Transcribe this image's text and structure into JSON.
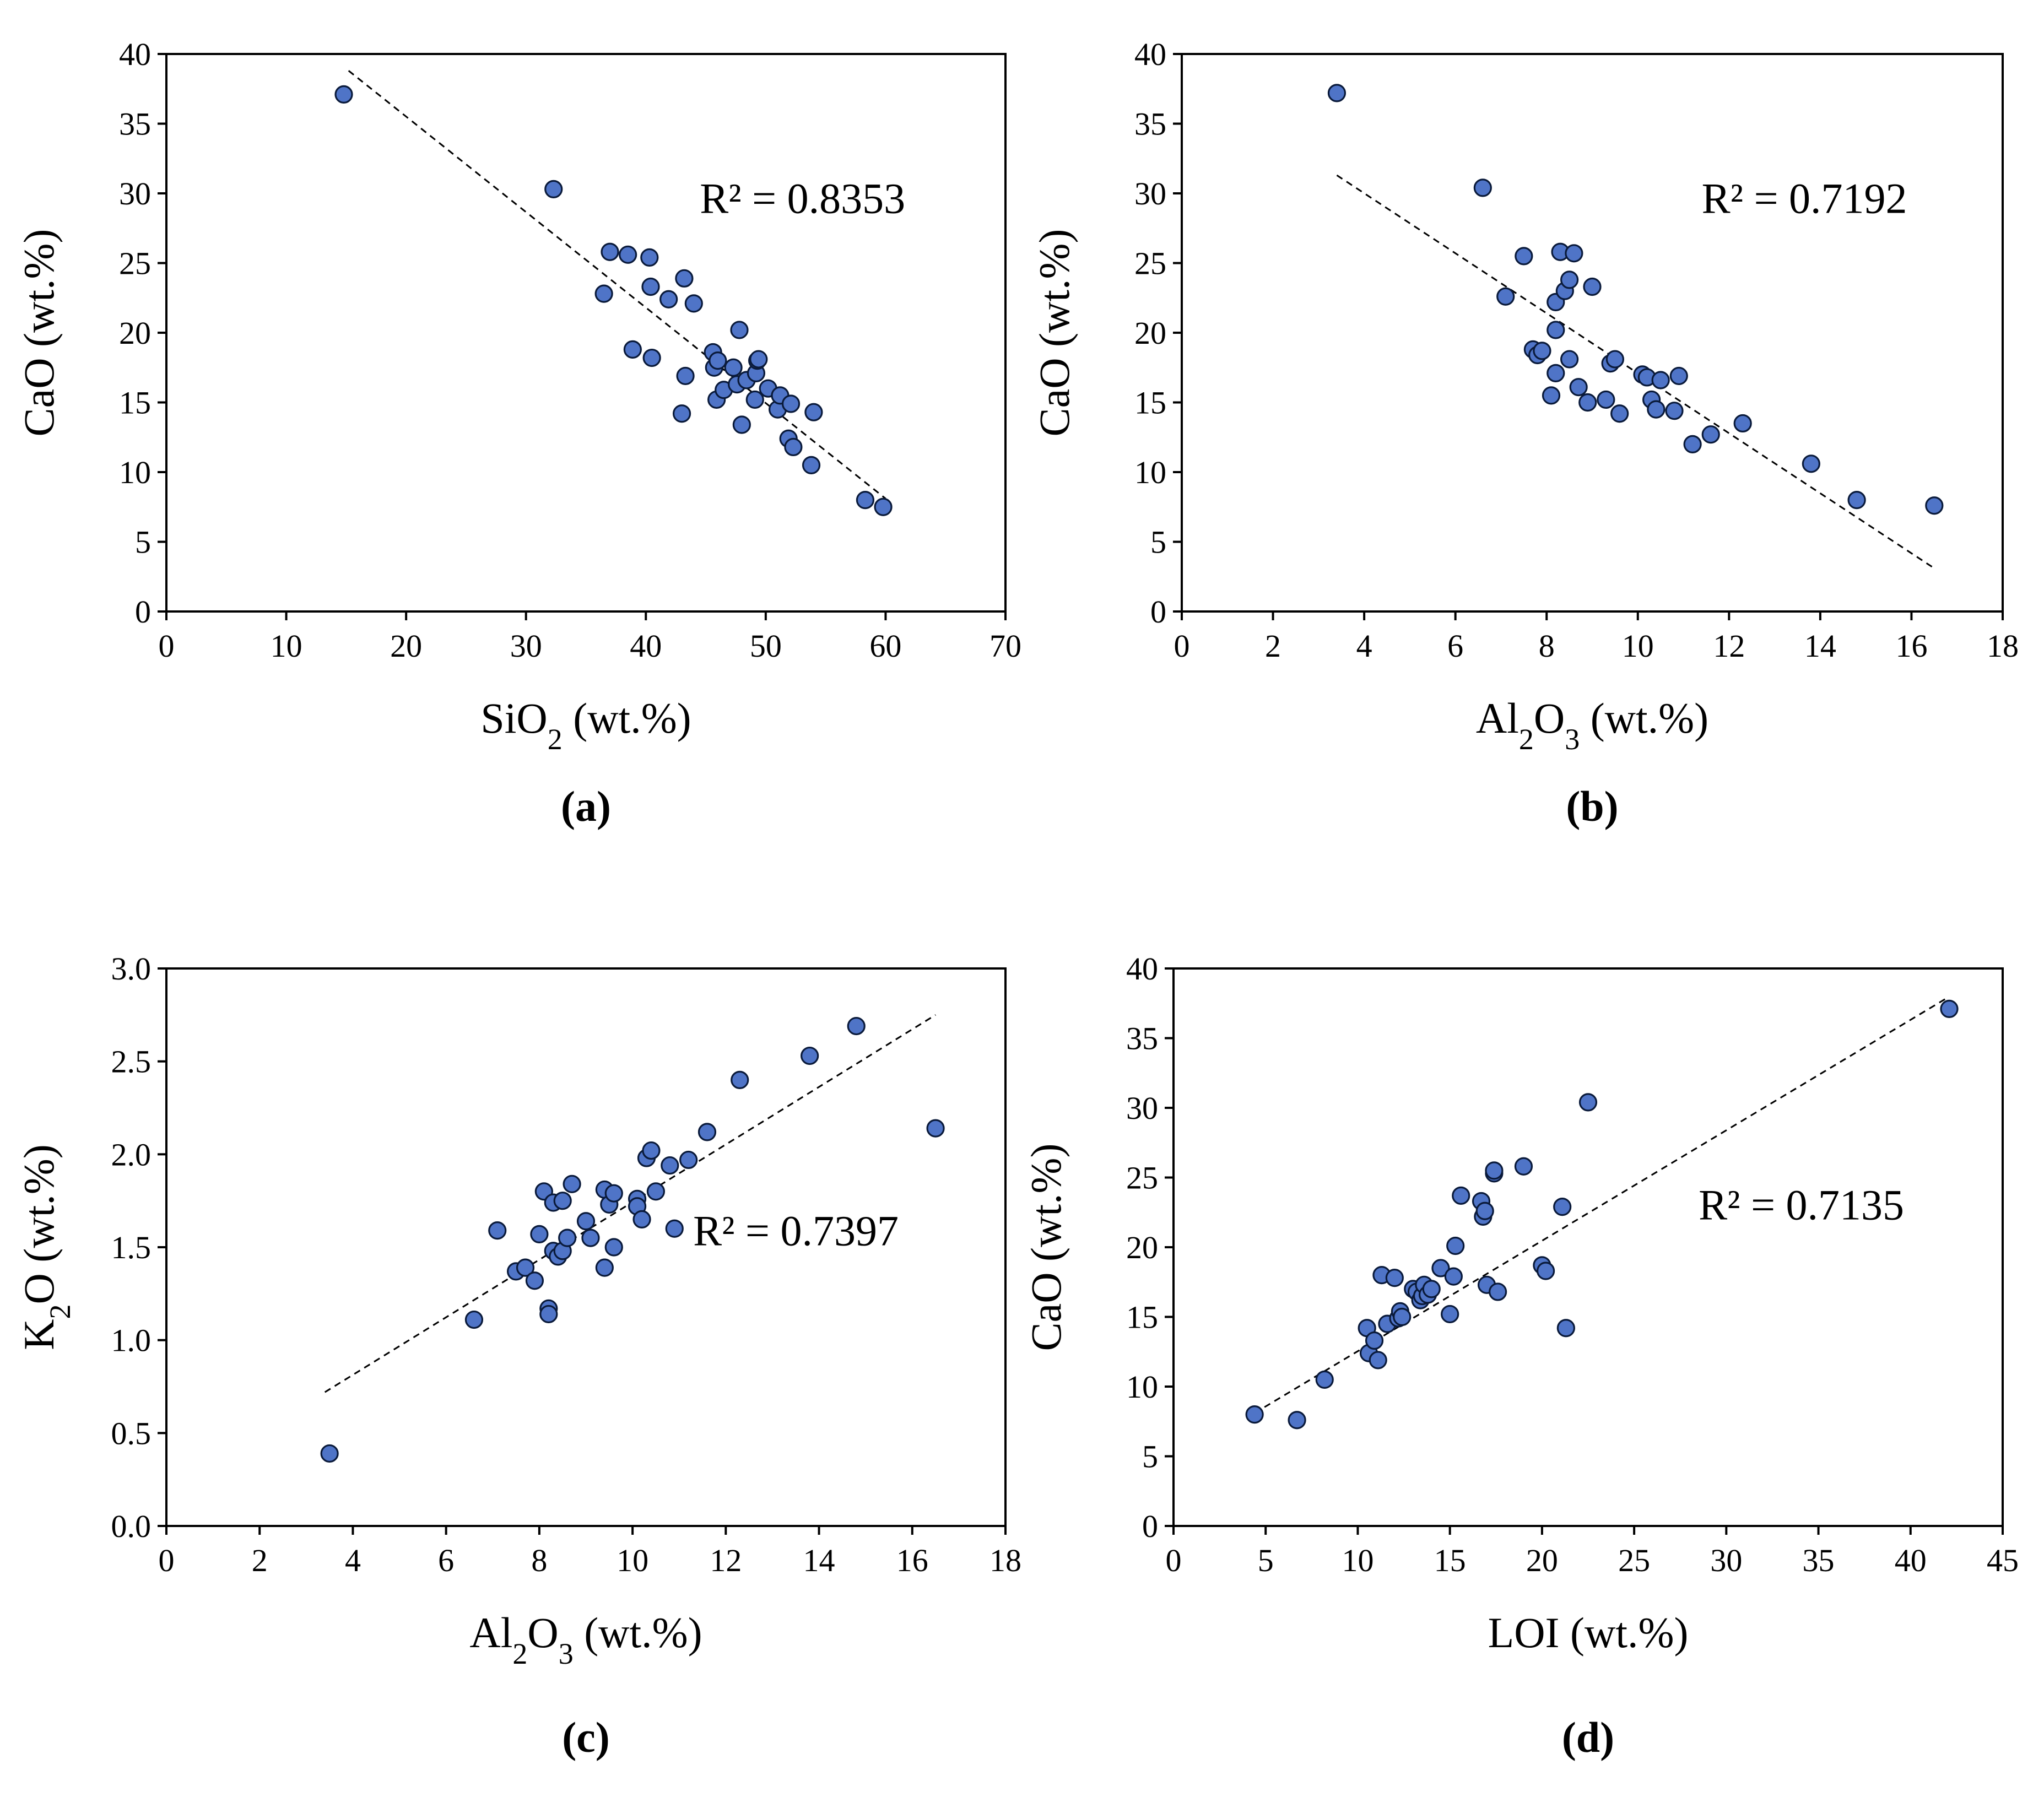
{
  "chart_data": [
    {
      "type": "scatter",
      "panel_label": "(a)",
      "xlabel": "SiO2 (wt.%)",
      "xlabel_main": "SiO",
      "xlabel_sub": "2",
      "xlabel_rest": " (wt.%)",
      "ylabel": "CaO (wt.%)",
      "xlim": [
        0,
        70
      ],
      "ylim": [
        0,
        40
      ],
      "xticks": [
        0,
        10,
        20,
        30,
        40,
        50,
        60,
        70
      ],
      "yticks": [
        0,
        5,
        10,
        15,
        20,
        25,
        30,
        35,
        40
      ],
      "y_decimals": 0,
      "r2_label": "R² = 0.8353",
      "r2_pos": [
        44.5,
        28.6
      ],
      "trendline": [
        [
          15.2,
          38.8
        ],
        [
          60.0,
          8.1
        ]
      ],
      "x": [
        14.8,
        32.3,
        36.5,
        37.0,
        38.5,
        38.9,
        40.3,
        40.4,
        40.5,
        41.9,
        43.0,
        43.2,
        43.3,
        44.0,
        45.6,
        45.7,
        45.9,
        46.0,
        46.5,
        47.3,
        47.6,
        47.8,
        48.0,
        48.4,
        49.1,
        49.2,
        49.3,
        49.4,
        50.2,
        51.0,
        51.2,
        51.9,
        52.1,
        52.3,
        53.8,
        54.0,
        58.3,
        59.8
      ],
      "y": [
        37.1,
        30.3,
        22.8,
        25.8,
        25.6,
        18.8,
        25.4,
        23.3,
        18.2,
        22.4,
        14.2,
        23.9,
        16.9,
        22.1,
        18.6,
        17.5,
        15.2,
        18.0,
        15.9,
        17.5,
        16.3,
        20.2,
        13.4,
        16.6,
        15.2,
        17.1,
        18.0,
        18.1,
        16.0,
        14.5,
        15.5,
        12.4,
        14.9,
        11.8,
        10.5,
        14.3,
        8.0,
        7.5
      ]
    },
    {
      "type": "scatter",
      "panel_label": "(b)",
      "xlabel": "Al2O3 (wt.%)",
      "xlabel_main": "Al",
      "xlabel_sub": "2",
      "xlabel_main2": "O",
      "xlabel_sub2": "3",
      "xlabel_rest": " (wt.%)",
      "ylabel": "CaO (wt.%)",
      "xlim": [
        0,
        18
      ],
      "ylim": [
        0,
        40
      ],
      "xticks": [
        0,
        2,
        4,
        6,
        8,
        10,
        12,
        14,
        16,
        18
      ],
      "yticks": [
        0,
        5,
        10,
        15,
        20,
        25,
        30,
        35,
        40
      ],
      "y_decimals": 0,
      "r2_label": "R² = 0.7192",
      "r2_pos": [
        11.4,
        28.6
      ],
      "trendline": [
        [
          3.4,
          31.3
        ],
        [
          16.5,
          3.1
        ]
      ],
      "x": [
        3.4,
        6.6,
        7.1,
        7.5,
        7.7,
        7.8,
        7.9,
        8.1,
        8.2,
        8.2,
        8.2,
        8.3,
        8.4,
        8.5,
        8.5,
        8.6,
        8.7,
        8.9,
        9.0,
        9.3,
        9.4,
        9.5,
        9.6,
        10.1,
        10.2,
        10.3,
        10.4,
        10.5,
        10.8,
        10.9,
        11.2,
        11.6,
        12.3,
        13.8,
        14.8,
        16.5
      ],
      "y": [
        37.2,
        30.4,
        22.6,
        25.5,
        18.8,
        18.4,
        18.7,
        15.5,
        22.2,
        20.2,
        17.1,
        25.8,
        23.0,
        23.8,
        18.1,
        25.7,
        16.1,
        15.0,
        23.3,
        15.2,
        17.8,
        18.1,
        14.2,
        17.0,
        16.8,
        15.2,
        14.5,
        16.6,
        14.4,
        16.9,
        12.0,
        12.7,
        13.5,
        10.6,
        8.0,
        7.6
      ]
    },
    {
      "type": "scatter",
      "panel_label": "(c)",
      "xlabel": "Al2O3 (wt.%)",
      "xlabel_main": "Al",
      "xlabel_sub": "2",
      "xlabel_main2": "O",
      "xlabel_sub2": "3",
      "xlabel_rest": " (wt.%)",
      "ylabel": "K2O (wt.%)",
      "ylabel_main": "K",
      "ylabel_sub": "2",
      "ylabel_rest": "O (wt.%)",
      "xlim": [
        0,
        18
      ],
      "ylim": [
        0,
        3
      ],
      "xticks": [
        0,
        2,
        4,
        6,
        8,
        10,
        12,
        14,
        16,
        18
      ],
      "yticks": [
        0.0,
        0.5,
        1.0,
        1.5,
        2.0,
        2.5,
        3.0
      ],
      "y_decimals": 1,
      "r2_label": "R² = 0.7397",
      "r2_pos": [
        11.3,
        1.51
      ],
      "trendline": [
        [
          3.4,
          0.72
        ],
        [
          16.5,
          2.75
        ]
      ],
      "x": [
        3.5,
        6.6,
        7.1,
        7.5,
        7.7,
        7.9,
        8.0,
        8.1,
        8.2,
        8.2,
        8.3,
        8.3,
        8.4,
        8.5,
        8.5,
        8.6,
        8.7,
        9.0,
        9.1,
        9.4,
        9.4,
        9.5,
        9.6,
        9.6,
        10.1,
        10.1,
        10.2,
        10.3,
        10.4,
        10.5,
        10.8,
        10.9,
        11.2,
        11.6,
        12.3,
        13.8,
        14.8,
        16.5
      ],
      "y": [
        0.39,
        1.11,
        1.59,
        1.37,
        1.39,
        1.32,
        1.57,
        1.8,
        1.17,
        1.14,
        1.48,
        1.74,
        1.45,
        1.48,
        1.75,
        1.55,
        1.84,
        1.64,
        1.55,
        1.81,
        1.39,
        1.73,
        1.79,
        1.5,
        1.76,
        1.72,
        1.65,
        1.98,
        2.02,
        1.8,
        1.94,
        1.6,
        1.97,
        2.12,
        2.4,
        2.53,
        2.69,
        2.14
      ]
    },
    {
      "type": "scatter",
      "panel_label": "(d)",
      "xlabel": "LOI (wt.%)",
      "ylabel": "CaO (wt.%)",
      "xlim": [
        0,
        45
      ],
      "ylim": [
        0,
        40
      ],
      "xticks": [
        0,
        5,
        10,
        15,
        20,
        25,
        30,
        35,
        40,
        45
      ],
      "yticks": [
        0,
        5,
        10,
        15,
        20,
        25,
        30,
        35,
        40
      ],
      "y_decimals": 0,
      "r2_label": "R² = 0.7135",
      "r2_pos": [
        28.5,
        22.0
      ],
      "trendline": [
        [
          4.4,
          8.1
        ],
        [
          42.0,
          37.9
        ]
      ],
      "x": [
        4.4,
        6.7,
        8.2,
        10.5,
        10.6,
        10.9,
        11.1,
        11.3,
        11.6,
        12.0,
        12.2,
        12.3,
        12.4,
        13.0,
        13.2,
        13.4,
        13.5,
        13.6,
        13.8,
        14.0,
        14.5,
        15.0,
        15.2,
        15.3,
        15.6,
        16.7,
        16.8,
        16.9,
        17.0,
        17.4,
        17.4,
        17.6,
        19.0,
        20.0,
        20.2,
        21.1,
        21.3,
        22.5,
        42.1
      ],
      "y": [
        8.0,
        7.6,
        10.5,
        14.2,
        12.4,
        13.3,
        11.9,
        18.0,
        14.5,
        17.8,
        14.9,
        15.4,
        15.0,
        17.0,
        16.8,
        16.2,
        16.5,
        17.3,
        16.6,
        17.0,
        18.5,
        15.2,
        17.9,
        20.1,
        23.7,
        23.3,
        22.2,
        22.6,
        17.3,
        25.3,
        25.5,
        16.8,
        25.8,
        18.7,
        18.3,
        22.9,
        14.2,
        30.4,
        37.1
      ]
    }
  ]
}
